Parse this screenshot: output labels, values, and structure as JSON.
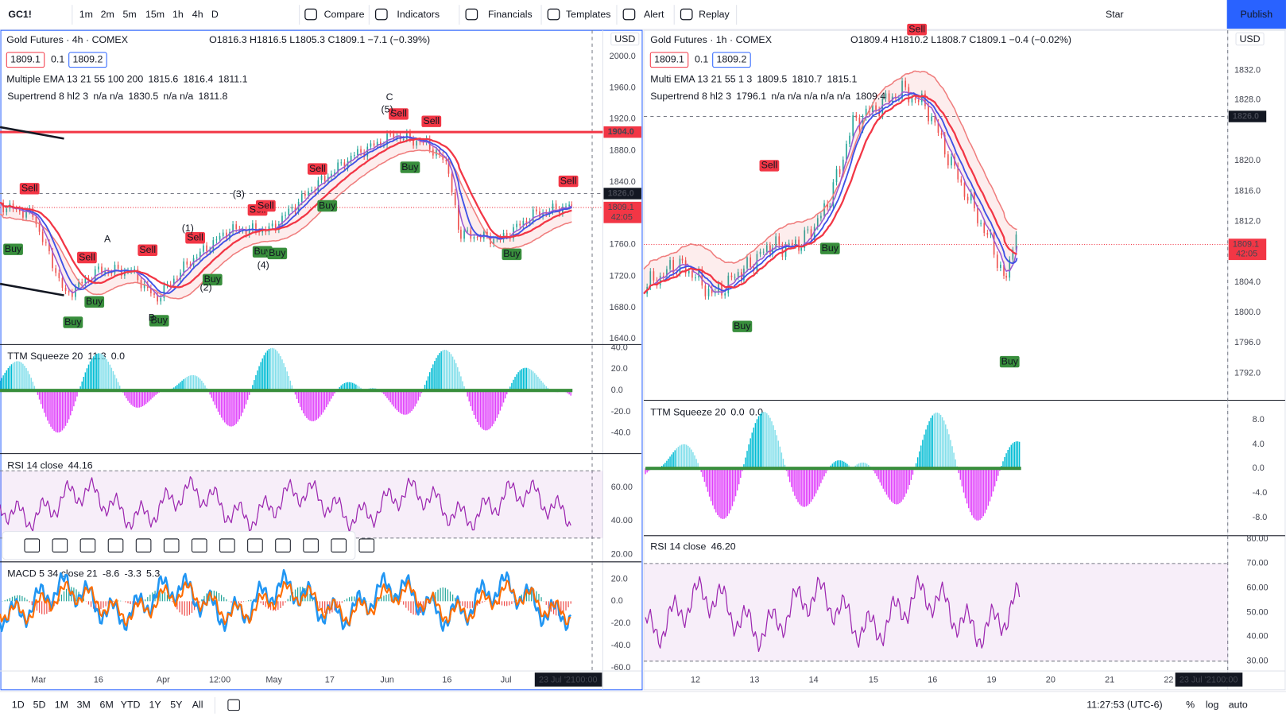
{
  "toolbar": {
    "symbol": "GC1!",
    "intervals": [
      "1m",
      "2m",
      "5m",
      "15m",
      "1h",
      "4h",
      "D"
    ],
    "buttons": [
      "Compare",
      "Indicators",
      "Financials",
      "Templates",
      "Alert",
      "Replay"
    ],
    "star": "Star",
    "publish": "Publish"
  },
  "signals": {
    "sell": "Sell",
    "buy": "Buy"
  },
  "left_chart": {
    "title": "Gold Futures · 4h · COMEX",
    "ohlc": "O1816.3 H1816.5 L1805.3 C1809.1 −7.1 (−0.39%)",
    "bid": "1809.1",
    "step": "0.1",
    "ask": "1809.2",
    "currency": "USD",
    "ema": {
      "name": "Multiple EMA 13 21 55 100 200",
      "values": [
        "1815.6",
        "1816.4",
        "1811.1"
      ]
    },
    "supertrend": {
      "name": "Supertrend 8 hl2 3",
      "values": "n/a n/a",
      "v1": "1830.5",
      "v2": "n/a n/a",
      "v3": "1811.8"
    },
    "ttm": {
      "name": "TTM Squeeze 20",
      "v1": "11.3",
      "v2": "0.0"
    },
    "rsi": {
      "name": "RSI 14 close",
      "value": "44.16"
    },
    "macd": {
      "name": "MACD 5 34 close 21",
      "values": [
        "-8.6",
        "-3.3",
        "5.3"
      ]
    },
    "price_axis": [
      "2000.0",
      "1960.0",
      "1920.0",
      "1880.0",
      "1840.0",
      "1760.0",
      "1720.0",
      "1680.0",
      "1640.0"
    ],
    "tags": {
      "resistance": "1904.0",
      "crosshair": "1826.0",
      "last": "1809.1",
      "countdown": "42:05"
    },
    "ttm_axis": [
      "40.0",
      "20.0",
      "0.0",
      "-20.0",
      "-40.0"
    ],
    "rsi_axis": [
      "60.00",
      "40.00",
      "20.00"
    ],
    "macd_axis": [
      "20.0",
      "0.0",
      "-20.0",
      "-40.0",
      "-60.0"
    ],
    "wave_labels": [
      "A",
      "B",
      "C",
      "(1)",
      "(2)",
      "(3)",
      "(4)",
      "(5)"
    ],
    "time_axis": [
      "Mar",
      "16",
      "Apr",
      "12:00",
      "May",
      "17",
      "Jun",
      "16",
      "Jul"
    ],
    "time_tag": "23 Jul '21",
    "time_tag2": "00:00"
  },
  "right_chart": {
    "title": "Gold Futures · 1h · COMEX",
    "ohlc": "O1809.4 H1810.2 L1808.7 C1809.1 −0.4 (−0.02%)",
    "bid": "1809.1",
    "step": "0.1",
    "ask": "1809.2",
    "currency": "USD",
    "ema": {
      "name": "Multi EMA 13 21 55 1 3",
      "values": [
        "1809.5",
        "1810.7",
        "1815.1"
      ]
    },
    "supertrend": {
      "name": "Supertrend 8 hl2 3",
      "v1": "1796.1",
      "values": "n/a n/a n/a n/a n/a",
      "v3": "1809.4"
    },
    "ttm": {
      "name": "TTM Squeeze 20",
      "v1": "0.0",
      "v2": "0.0"
    },
    "rsi": {
      "name": "RSI 14 close",
      "value": "46.20"
    },
    "price_axis": [
      "1832.0",
      "1828.0",
      "1820.0",
      "1816.0",
      "1812.0",
      "1804.0",
      "1800.0",
      "1796.0",
      "1792.0"
    ],
    "tags": {
      "crosshair": "1826.0",
      "last": "1809.1",
      "countdown": "42:05"
    },
    "ttm_axis": [
      "8.0",
      "4.0",
      "0.0",
      "-4.0",
      "-8.0"
    ],
    "rsi_axis": [
      "80.00",
      "70.00",
      "60.00",
      "50.00",
      "40.00",
      "30.00"
    ],
    "time_axis": [
      "12",
      "13",
      "14",
      "15",
      "16",
      "19",
      "20",
      "21",
      "22"
    ],
    "time_tag": "23 Jul '21",
    "time_tag2": "00:00"
  },
  "bottom": {
    "ranges": [
      "1D",
      "5D",
      "1M",
      "3M",
      "6M",
      "YTD",
      "1Y",
      "5Y",
      "All"
    ],
    "clock": "11:27:53 (UTC-6)",
    "percent": "%",
    "log": "log",
    "auto": "auto"
  }
}
